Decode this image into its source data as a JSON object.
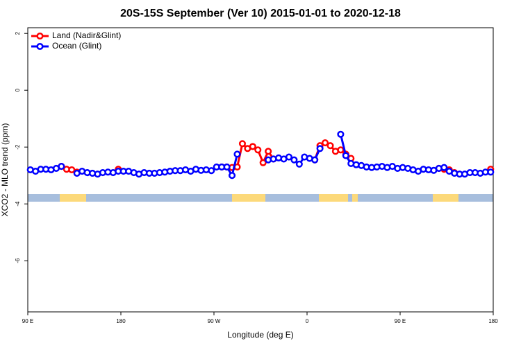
{
  "chart_data": {
    "type": "line",
    "title": "20S-15S September (Ver 10)   2015-01-01 to 2020-12-18",
    "xlabel": "Longitude (deg E)",
    "ylabel": "XCO2 - MLO trend (ppm)",
    "xlim": [
      90,
      540
    ],
    "xticks": [
      {
        "value": 90,
        "label": "90 E"
      },
      180,
      {
        "value": 270,
        "label": "90 W"
      },
      {
        "value": 360,
        "label": "0"
      },
      {
        "value": 450,
        "label": "90 E"
      },
      {
        "value": 540,
        "label": "180"
      }
    ],
    "ylim": [
      -7.8,
      2.2
    ],
    "yticks": [
      2,
      0,
      -2,
      -4,
      -6
    ],
    "legend": "top-left",
    "x": [
      92.5,
      97.5,
      102.5,
      107.5,
      112.5,
      117.5,
      122.5,
      127.5,
      132.5,
      137.5,
      142.5,
      147.5,
      152.5,
      157.5,
      162.5,
      167.5,
      172.5,
      177.5,
      182.5,
      187.5,
      192.5,
      197.5,
      202.5,
      207.5,
      212.5,
      217.5,
      222.5,
      227.5,
      232.5,
      237.5,
      242.5,
      247.5,
      252.5,
      257.5,
      262.5,
      267.5,
      272.5,
      277.5,
      282.5,
      287.5,
      292.5,
      297.5,
      302.5,
      307.5,
      312.5,
      317.5,
      322.5,
      327.5,
      332.5,
      337.5,
      342.5,
      347.5,
      352.5,
      357.5,
      362.5,
      367.5,
      372.5,
      377.5,
      382.5,
      387.5,
      392.5,
      397.5,
      402.5,
      407.5,
      412.5,
      417.5,
      422.5,
      427.5,
      432.5,
      437.5,
      442.5,
      447.5,
      452.5,
      457.5,
      462.5,
      467.5,
      472.5,
      477.5,
      482.5,
      487.5,
      492.5,
      497.5,
      502.5,
      507.5,
      512.5,
      517.5,
      522.5,
      527.5,
      532.5,
      537.5
    ],
    "series": [
      {
        "name": "Land (Nadir&Glint)",
        "color": "#ff0000",
        "values": [
          null,
          null,
          null,
          null,
          null,
          null,
          -2.68,
          -2.78,
          -2.8,
          -2.88,
          null,
          null,
          null,
          null,
          null,
          null,
          null,
          -2.78,
          null,
          null,
          null,
          null,
          null,
          null,
          null,
          null,
          null,
          null,
          null,
          null,
          null,
          null,
          null,
          null,
          null,
          null,
          null,
          -2.7,
          -2.7,
          -2.72,
          -2.7,
          -1.88,
          -2.05,
          -1.98,
          -2.1,
          -2.55,
          -2.15,
          -2.42,
          null,
          null,
          null,
          null,
          null,
          null,
          null,
          -2.45,
          -1.95,
          -1.85,
          -1.95,
          -2.15,
          -2.1,
          -2.25,
          -2.4,
          null,
          null,
          null,
          null,
          null,
          null,
          null,
          null,
          null,
          null,
          null,
          null,
          null,
          null,
          null,
          null,
          -2.75,
          -2.78,
          -2.8,
          -2.9,
          null,
          null,
          null,
          null,
          null,
          null,
          -2.78
        ]
      },
      {
        "name": "Ocean (Glint)",
        "color": "#0000ff",
        "values": [
          -2.8,
          -2.85,
          -2.78,
          -2.78,
          -2.8,
          -2.75,
          -2.68,
          null,
          null,
          -2.92,
          -2.85,
          -2.9,
          -2.92,
          -2.95,
          -2.9,
          -2.88,
          -2.9,
          -2.85,
          -2.85,
          -2.85,
          -2.9,
          -2.95,
          -2.9,
          -2.92,
          -2.92,
          -2.9,
          -2.88,
          -2.85,
          -2.83,
          -2.83,
          -2.8,
          -2.85,
          -2.78,
          -2.82,
          -2.8,
          -2.83,
          -2.7,
          -2.7,
          -2.7,
          -3.0,
          -2.25,
          null,
          null,
          null,
          null,
          null,
          -2.45,
          -2.42,
          -2.38,
          -2.42,
          -2.35,
          -2.45,
          -2.6,
          -2.35,
          -2.4,
          -2.45,
          -2.05,
          null,
          null,
          null,
          -1.55,
          -2.3,
          -2.58,
          -2.62,
          -2.65,
          -2.7,
          -2.72,
          -2.7,
          -2.68,
          -2.72,
          -2.68,
          -2.75,
          -2.72,
          -2.75,
          -2.8,
          -2.85,
          -2.78,
          -2.8,
          -2.82,
          -2.75,
          -2.72,
          -2.85,
          -2.92,
          -2.95,
          -2.95,
          -2.9,
          -2.9,
          -2.92,
          -2.88,
          -2.88
        ]
      }
    ]
  }
}
